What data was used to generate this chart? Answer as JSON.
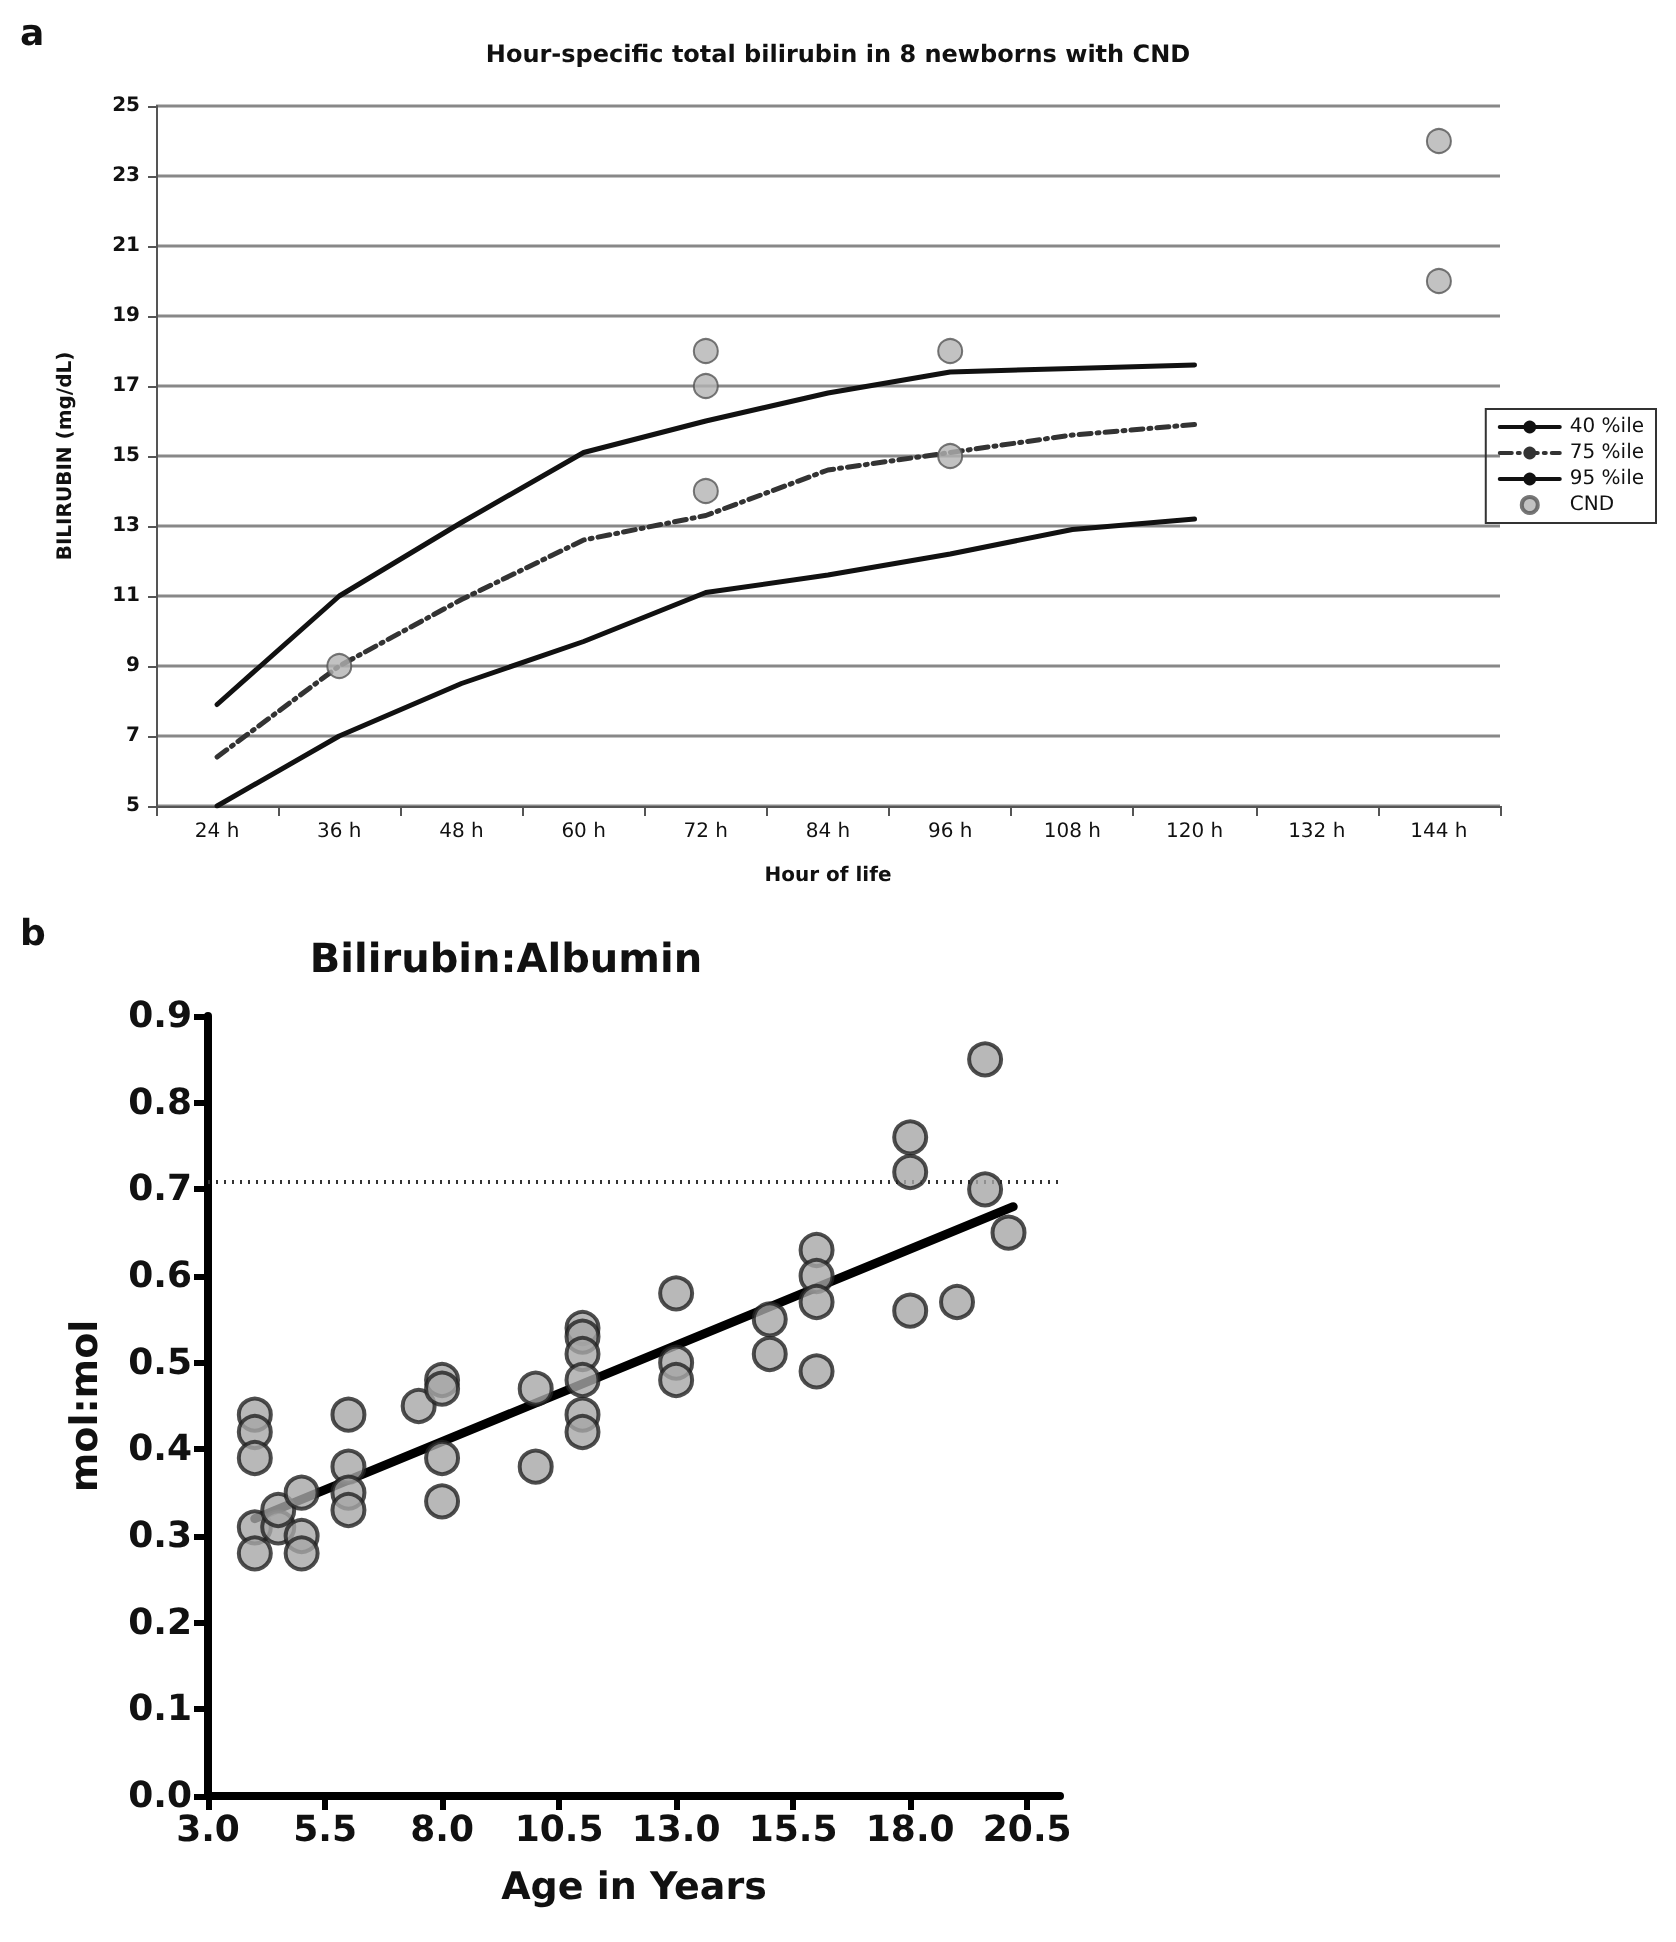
{
  "chart_data": [
    {
      "type": "line",
      "title": "Hour-specific total bilirubin in 8 newborns with CND",
      "xlabel": "Hour of life",
      "ylabel": "BILIRUBIN (mg/dL)",
      "annotations": [
        "a"
      ],
      "categories": [
        "24 h",
        "36 h",
        "48 h",
        "60 h",
        "72 h",
        "84 h",
        "96 h",
        "108 h",
        "120 h",
        "132 h",
        "144 h"
      ],
      "ylim": [
        5,
        25
      ],
      "yticks": [
        5,
        7,
        9,
        11,
        13,
        15,
        17,
        19,
        21,
        23,
        25
      ],
      "grid": "y",
      "legend": "right",
      "series": [
        {
          "name": "40 %ile",
          "color": "#111111",
          "line_style": "solid",
          "marker": "none",
          "values": [
            5.0,
            7.0,
            8.5,
            9.7,
            11.1,
            11.6,
            12.2,
            12.9,
            13.2,
            null,
            null
          ]
        },
        {
          "name": "75 %ile",
          "color": "#333333",
          "line_style": "dashed",
          "marker": "none",
          "values": [
            6.4,
            9.0,
            10.9,
            12.6,
            13.3,
            14.6,
            15.1,
            15.6,
            15.9,
            null,
            null
          ]
        },
        {
          "name": "95 %ile",
          "color": "#111111",
          "line_style": "solid",
          "marker": "none",
          "values": [
            7.9,
            11.0,
            13.1,
            15.1,
            16.0,
            16.8,
            17.4,
            17.5,
            17.6,
            null,
            null
          ]
        },
        {
          "name": "CND",
          "type": "scatter",
          "color": "#b3b3b3",
          "marker": "circle",
          "x": [
            "36 h",
            "72 h",
            "72 h",
            "72 h",
            "96 h",
            "96 h",
            "144 h",
            "144 h"
          ],
          "values": [
            9,
            18,
            17,
            14,
            18,
            15,
            24,
            20
          ]
        }
      ]
    },
    {
      "type": "scatter",
      "title": "Bilirubin:Albumin",
      "xlabel": "Age in Years",
      "ylabel": "mol:mol",
      "annotations": [
        "b"
      ],
      "xlim": [
        3,
        21.2
      ],
      "xticks": [
        {
          "value": 3,
          "label": "3.0"
        },
        {
          "value": 5.5,
          "label": "5.5"
        },
        {
          "value": 8,
          "label": "8.0"
        },
        {
          "value": 10.5,
          "label": "10.5"
        },
        {
          "value": 13,
          "label": "13.0"
        },
        {
          "value": 15.5,
          "label": "15.5"
        },
        {
          "value": 18,
          "label": "18.0"
        },
        {
          "value": 20.5,
          "label": "20.5"
        }
      ],
      "ylim": [
        0,
        0.9
      ],
      "yticks": [
        {
          "value": 0,
          "label": "0.0"
        },
        0.1,
        0.2,
        0.3,
        0.4,
        0.5,
        0.6,
        0.7,
        0.8,
        0.9
      ],
      "grid": false,
      "legend": false,
      "ref_lines": [
        {
          "axis": "y",
          "value": 0.71,
          "line_style": "dotted",
          "color": "#333333"
        }
      ],
      "series": [
        {
          "color": "#a6a6a6",
          "marker": "circle",
          "x": [
            4,
            4,
            4,
            4,
            4,
            4.5,
            4.5,
            5,
            5,
            5,
            6,
            6,
            6,
            6,
            7.5,
            8,
            8,
            8,
            8,
            10,
            10,
            11,
            11,
            11,
            11,
            11,
            11,
            13,
            13,
            13,
            15,
            15,
            16,
            16,
            16,
            16,
            18,
            18,
            18,
            19,
            19.6,
            19.6,
            20.1
          ],
          "values": [
            0.44,
            0.42,
            0.39,
            0.31,
            0.28,
            0.31,
            0.33,
            0.35,
            0.3,
            0.28,
            0.44,
            0.38,
            0.35,
            0.33,
            0.45,
            0.48,
            0.47,
            0.39,
            0.34,
            0.47,
            0.38,
            0.54,
            0.53,
            0.51,
            0.48,
            0.44,
            0.42,
            0.58,
            0.5,
            0.48,
            0.55,
            0.51,
            0.63,
            0.6,
            0.57,
            0.49,
            0.76,
            0.72,
            0.56,
            0.57,
            0.85,
            0.7,
            0.65
          ]
        },
        {
          "type": "line",
          "color": "#000000",
          "marker": "none",
          "line_style": "solid",
          "x": [
            4,
            20.2
          ],
          "values": [
            0.32,
            0.68
          ]
        }
      ]
    }
  ]
}
